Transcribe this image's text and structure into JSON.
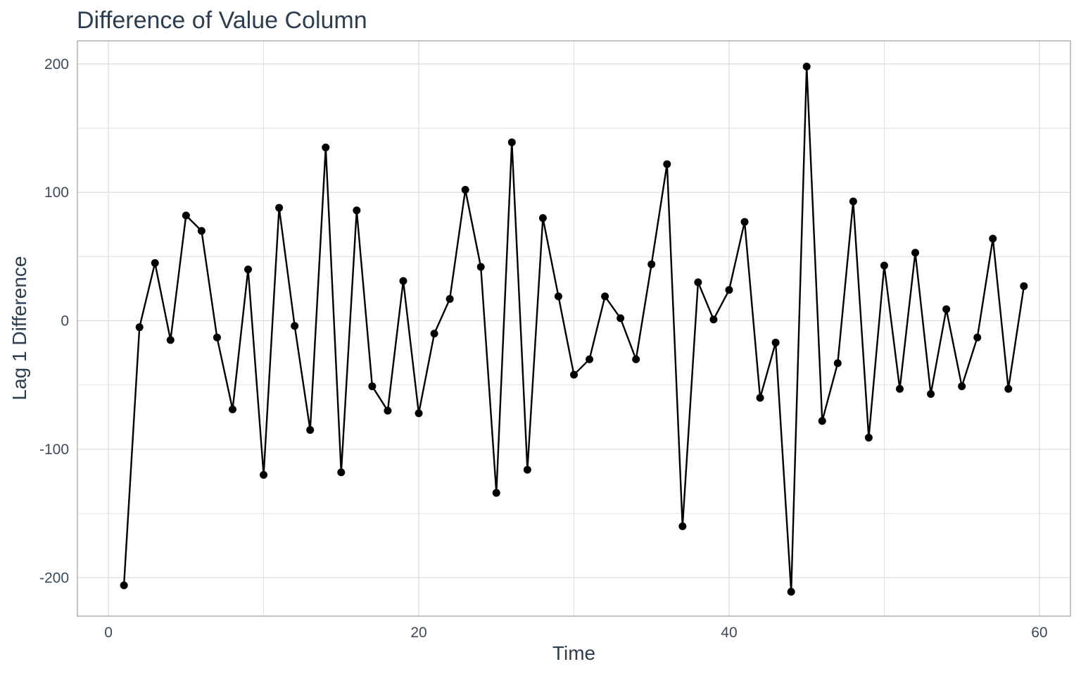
{
  "chart_data": {
    "type": "line",
    "title": "Difference of Value Column",
    "xlabel": "Time",
    "ylabel": "Lag 1 Difference",
    "xlim": [
      -2,
      62
    ],
    "ylim": [
      -230,
      218
    ],
    "x_ticks": [
      0,
      20,
      40,
      60
    ],
    "x_tick_labels": [
      "0",
      "20",
      "40",
      "60"
    ],
    "y_ticks": [
      -200,
      -100,
      0,
      100,
      200
    ],
    "y_tick_labels": [
      "-200",
      "-100",
      "0",
      "100",
      "200"
    ],
    "grid": true,
    "legend": "none",
    "markers": true,
    "line_color": "#000000",
    "grid_color": "#d9d9d9",
    "text_color": "#2c3e50",
    "x": [
      1,
      2,
      3,
      4,
      5,
      6,
      7,
      8,
      9,
      10,
      11,
      12,
      13,
      14,
      15,
      16,
      17,
      18,
      19,
      20,
      21,
      22,
      23,
      24,
      25,
      26,
      27,
      28,
      29,
      30,
      31,
      32,
      33,
      34,
      35,
      36,
      37,
      38,
      39,
      40,
      41,
      42,
      43,
      44,
      45,
      46,
      47,
      48,
      49,
      50,
      51,
      52,
      53,
      54,
      55,
      56,
      57,
      58,
      59
    ],
    "y": [
      -206,
      -5,
      45,
      -15,
      82,
      70,
      -13,
      -69,
      40,
      -120,
      88,
      -4,
      -85,
      135,
      -118,
      86,
      -51,
      -70,
      31,
      -72,
      -10,
      17,
      102,
      42,
      -134,
      139,
      -116,
      80,
      19,
      -42,
      -30,
      19,
      2,
      -30,
      44,
      122,
      -160,
      30,
      1,
      24,
      77,
      -60,
      -17,
      -211,
      198,
      -78,
      -33,
      93,
      -91,
      43,
      -53,
      53,
      -57,
      9,
      -51,
      -13,
      64,
      -53,
      27
    ]
  }
}
